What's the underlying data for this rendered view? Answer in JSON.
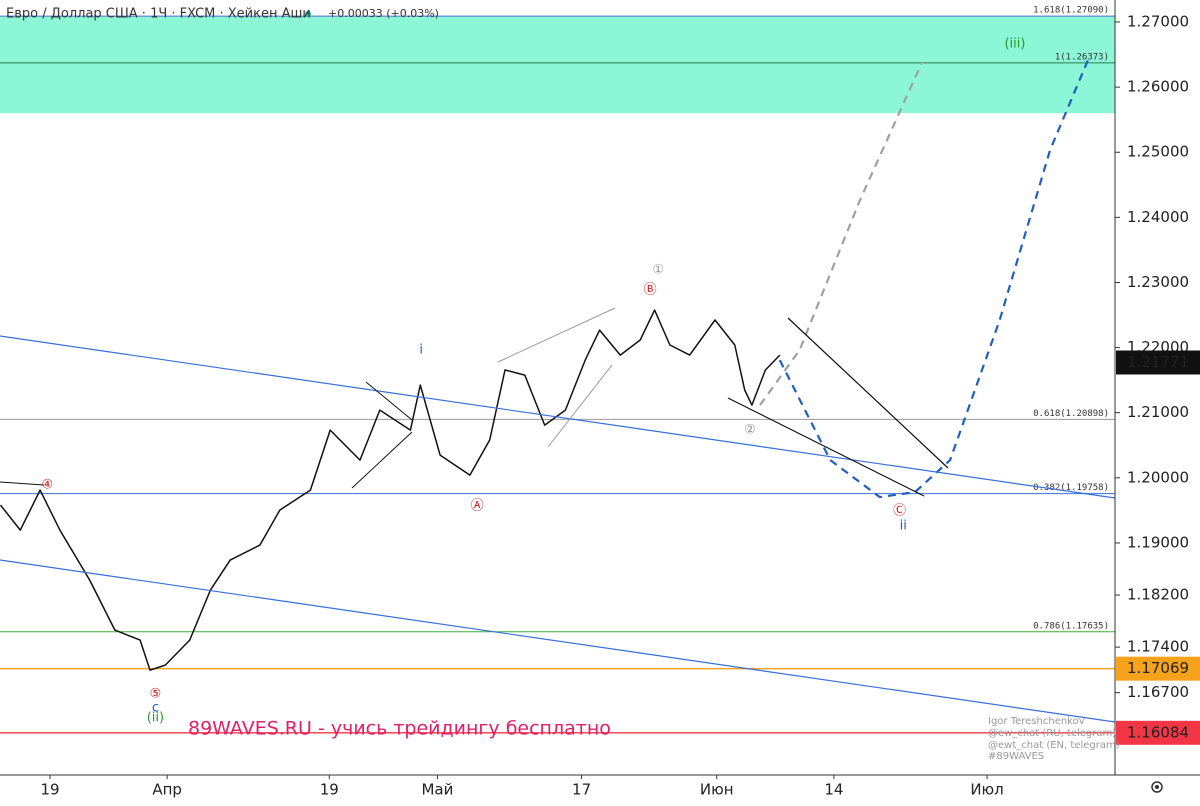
{
  "chart_data": {
    "type": "line",
    "title": "Евро / Доллар США · 1Ч · FXCM · Хейкен Аши",
    "subtitle": "+0.00033 (+0.03%)",
    "watermark": "89WAVES.RU - учись трейдингу бесплатно",
    "credits": [
      "Igor Tereshchenkov",
      "@ew_chat (RU, telegram)",
      "@ewt_chat (EN, telegram)",
      "#89WAVES"
    ],
    "xlim": [
      -5.55,
      118.2
    ],
    "ylim": [
      1.15436,
      1.27338
    ],
    "xticks": [
      {
        "value": 0,
        "label": "19"
      },
      {
        "value": 13,
        "label": "Апр"
      },
      {
        "value": 31,
        "label": "19"
      },
      {
        "value": 43,
        "label": "Май"
      },
      {
        "value": 59,
        "label": "17"
      },
      {
        "value": 74,
        "label": "Июн"
      },
      {
        "value": 87,
        "label": "14"
      },
      {
        "value": 104,
        "label": "Июл"
      }
    ],
    "yticks": [
      {
        "value": 1.27,
        "label": "1.27000"
      },
      {
        "value": 1.26,
        "label": "1.26000"
      },
      {
        "value": 1.25,
        "label": "1.25000"
      },
      {
        "value": 1.24,
        "label": "1.24000"
      },
      {
        "value": 1.23,
        "label": "1.23000"
      },
      {
        "value": 1.22,
        "label": "1.22000"
      },
      {
        "value": 1.21,
        "label": "1.21000"
      },
      {
        "value": 1.2,
        "label": "1.20000"
      },
      {
        "value": 1.19,
        "label": "1.19000"
      },
      {
        "value": 1.182,
        "label": "1.18200"
      },
      {
        "value": 1.174,
        "label": "1.17400"
      },
      {
        "value": 1.167,
        "label": "1.16700"
      }
    ],
    "zone": {
      "from": 1.256,
      "to": 1.2709,
      "color": "#80f5d2"
    },
    "series": [
      {
        "color": "#111111",
        "x": [
          -5.5,
          -3.3,
          -1.1,
          1.1,
          4.4,
          7.2,
          10,
          11.1,
          12.8,
          15.5,
          17.8,
          20,
          23.3,
          25.5,
          28.9,
          31.1,
          34.4,
          36.6,
          40,
          41.1,
          43.3,
          46.6,
          48.8,
          50.5,
          52.7,
          54.9,
          57.2,
          59.4,
          61,
          63.3,
          65.5,
          67.1,
          68.8,
          71,
          73.8,
          76,
          77.1,
          77.9,
          79.4,
          81
        ],
        "values": [
          1.19581,
          1.19197,
          1.19812,
          1.19197,
          1.18429,
          1.17661,
          1.17508,
          1.17047,
          1.17124,
          1.17508,
          1.18276,
          1.18736,
          1.18967,
          1.19504,
          1.19812,
          1.20733,
          1.20272,
          1.2104,
          1.20733,
          1.21424,
          1.20349,
          1.20042,
          1.2058,
          1.21655,
          1.21578,
          1.2081,
          1.2104,
          1.21808,
          1.22269,
          1.21885,
          1.22116,
          1.22576,
          1.22039,
          1.21885,
          1.22423,
          1.22039,
          1.21348,
          1.21117,
          1.21655,
          1.21885
        ]
      }
    ],
    "projections": [
      {
        "color": "#1f5fc0",
        "x": [
          81,
          86.6,
          92.1,
          96,
          99.9,
          105.4,
          111,
          115.2
        ],
        "values": [
          1.21808,
          1.20272,
          1.19704,
          1.19781,
          1.20272,
          1.22423,
          1.25034,
          1.26416
        ]
      },
      {
        "color": "#a0a0a0",
        "x": [
          78.8,
          83.2,
          89.9,
          96.8
        ],
        "values": [
          1.21117,
          1.21962,
          1.24266,
          1.26386
        ]
      }
    ],
    "levels": [
      {
        "value": 1.2709,
        "label": "1.618(1.27090)",
        "color": "#4a6fd0"
      },
      {
        "value": 1.26373,
        "label": "1(1.26373)",
        "color": "#2a7a4a"
      },
      {
        "value": 1.20898,
        "label": "0.618(1.20898)",
        "color": "#999999"
      },
      {
        "value": 1.19758,
        "label": "0.382(1.19758)",
        "color": "#3a6fd8"
      },
      {
        "value": 1.17635,
        "label": "0.786(1.17635)",
        "color": "#3fae3f"
      }
    ],
    "price_labels": [
      {
        "value": 1.21771,
        "bg": "#111111",
        "text_color": "#ffffff",
        "line": false
      },
      {
        "value": 1.17069,
        "bg": "#f7a21b",
        "text_color": "#111111",
        "line": true
      },
      {
        "value": 1.16084,
        "bg": "#f23645",
        "text_color": "#111111",
        "line": true
      }
    ],
    "annotations": [
      {
        "text": "①",
        "x": 67.5,
        "y": 1.23191,
        "color": "#999999"
      },
      {
        "text": "Ⓑ",
        "x": 66.6,
        "y": 1.22884,
        "color": "#d01818"
      },
      {
        "text": "i",
        "x": 41.2,
        "y": 1.21962,
        "color": "#1f5fc0"
      },
      {
        "text": "Ⓐ",
        "x": 47.4,
        "y": 1.19566,
        "color": "#d01818"
      },
      {
        "text": "②",
        "x": 77.7,
        "y": 1.20733,
        "color": "#999999"
      },
      {
        "text": "Ⓒ",
        "x": 94.3,
        "y": 1.19489,
        "color": "#d01818"
      },
      {
        "text": "ii",
        "x": 94.7,
        "y": 1.19259,
        "color": "#1f5fc0"
      },
      {
        "text": "④",
        "x": -0.3,
        "y": 1.19888,
        "color": "#d01818"
      },
      {
        "text": "⑤",
        "x": 11.7,
        "y": 1.16678,
        "color": "#d01818"
      },
      {
        "text": "c",
        "x": 11.7,
        "y": 1.16463,
        "color": "#1f5fc0"
      },
      {
        "text": "(ii)",
        "x": 11.7,
        "y": 1.16309,
        "color": "#2a9a2a"
      },
      {
        "text": "(iii)",
        "x": 107.1,
        "y": 1.26662,
        "color": "#2a9a2a"
      }
    ]
  }
}
